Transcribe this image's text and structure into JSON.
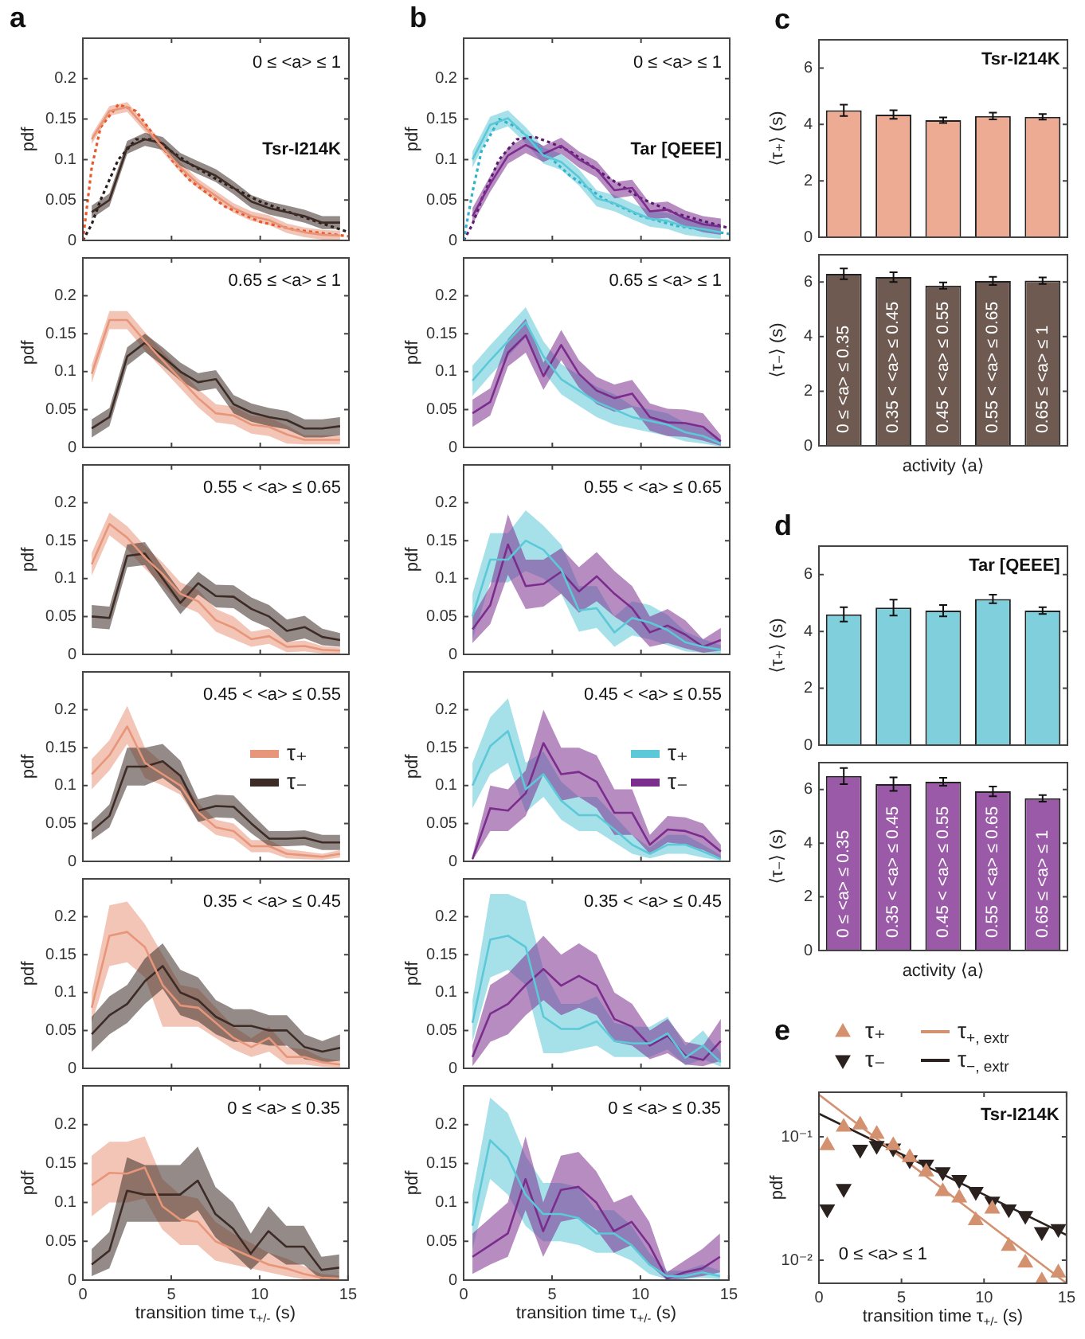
{
  "chart_data": [
    {
      "type": "line",
      "title": "a",
      "ylabel": "pdf",
      "x": [
        0.5,
        1.5,
        2.5,
        3.5,
        4.5,
        5.5,
        6.5,
        7.5,
        8.5,
        9.5,
        10.5,
        11.5,
        12.5,
        13.5,
        14.5
      ],
      "xlim": [
        0,
        15
      ],
      "xticks": [
        0,
        5,
        10,
        15
      ],
      "ylim": [
        0,
        0.25
      ],
      "yticks": [
        0,
        0.05,
        0.1,
        0.15,
        0.2
      ],
      "tick_labels": "y",
      "annotations": [
        "0 ≤ <a> ≤ 1",
        "Tsr-I214K"
      ],
      "series": [
        {
          "color": "#e8967a",
          "values": [
            0.125,
            0.16,
            0.165,
            0.14,
            0.115,
            0.09,
            0.07,
            0.055,
            0.04,
            0.03,
            0.025,
            0.015,
            0.01,
            0.007,
            0.006
          ],
          "lower": [
            0.119,
            0.154,
            0.159,
            0.134,
            0.109,
            0.084,
            0.064,
            0.049,
            0.034,
            0.024,
            0.019,
            0.009,
            0.004,
            0.001,
            0
          ],
          "upper": [
            0.131,
            0.166,
            0.171,
            0.146,
            0.121,
            0.096,
            0.076,
            0.061,
            0.046,
            0.036,
            0.031,
            0.021,
            0.016,
            0.013,
            0.012
          ]
        },
        {
          "color": "#3d2b26",
          "values": [
            0.035,
            0.05,
            0.115,
            0.125,
            0.12,
            0.1,
            0.09,
            0.08,
            0.065,
            0.048,
            0.04,
            0.035,
            0.03,
            0.022,
            0.022
          ],
          "lower": [
            0.027,
            0.042,
            0.107,
            0.117,
            0.112,
            0.092,
            0.082,
            0.072,
            0.057,
            0.04,
            0.032,
            0.027,
            0.022,
            0.014,
            0.014
          ],
          "upper": [
            0.043,
            0.058,
            0.123,
            0.133,
            0.128,
            0.108,
            0.098,
            0.088,
            0.073,
            0.056,
            0.048,
            0.043,
            0.038,
            0.03,
            0.03
          ]
        },
        {
          "type": "line",
          "line_style": "dotted",
          "color": "#e8582a",
          "x": [
            0,
            0.5,
            1,
            2,
            3,
            4,
            5,
            6,
            8,
            10,
            12,
            15
          ],
          "values": [
            0,
            0.09,
            0.14,
            0.168,
            0.16,
            0.13,
            0.1,
            0.075,
            0.042,
            0.023,
            0.013,
            0.005
          ]
        },
        {
          "type": "line",
          "line_style": "dotted",
          "color": "#2a1f1c",
          "x": [
            0,
            0.5,
            1,
            2,
            3,
            4,
            5,
            6,
            8,
            10,
            12,
            15
          ],
          "values": [
            0,
            0.02,
            0.05,
            0.1,
            0.125,
            0.125,
            0.11,
            0.095,
            0.07,
            0.048,
            0.032,
            0.01
          ]
        }
      ]
    },
    {
      "type": "line",
      "ylabel": "pdf",
      "x": [
        0.5,
        1.5,
        2.5,
        3.5,
        4.5,
        5.5,
        6.5,
        7.5,
        8.5,
        9.5,
        10.5,
        11.5,
        12.5,
        13.5,
        14.5
      ],
      "xlim": [
        0,
        15
      ],
      "xticks": [
        0,
        5,
        10,
        15
      ],
      "ylim": [
        0,
        0.25
      ],
      "yticks": [
        0,
        0.05,
        0.1,
        0.15,
        0.2
      ],
      "tick_labels": "y",
      "annotations": [
        "0.65 ≤ <a> ≤ 1"
      ],
      "series": [
        {
          "color": "#e8967a",
          "values": [
            0.097,
            0.168,
            0.168,
            0.14,
            0.115,
            0.09,
            0.065,
            0.045,
            0.042,
            0.03,
            0.027,
            0.017,
            0.01,
            0.01,
            0.01
          ],
          "lower": [
            0.085,
            0.156,
            0.156,
            0.128,
            0.103,
            0.078,
            0.053,
            0.033,
            0.03,
            0.018,
            0.015,
            0.005,
            0.004,
            0.004,
            0.004
          ],
          "upper": [
            0.109,
            0.18,
            0.18,
            0.152,
            0.127,
            0.102,
            0.077,
            0.057,
            0.054,
            0.042,
            0.039,
            0.029,
            0.016,
            0.016,
            0.016
          ]
        },
        {
          "color": "#3d2b26",
          "values": [
            0.025,
            0.04,
            0.12,
            0.138,
            0.12,
            0.1,
            0.086,
            0.09,
            0.057,
            0.046,
            0.04,
            0.036,
            0.025,
            0.025,
            0.028
          ],
          "lower": [
            0.013,
            0.028,
            0.108,
            0.126,
            0.108,
            0.088,
            0.074,
            0.078,
            0.045,
            0.034,
            0.028,
            0.024,
            0.013,
            0.013,
            0.016
          ],
          "upper": [
            0.037,
            0.052,
            0.132,
            0.15,
            0.132,
            0.112,
            0.098,
            0.102,
            0.069,
            0.058,
            0.052,
            0.048,
            0.037,
            0.037,
            0.04
          ]
        }
      ]
    },
    {
      "type": "line",
      "ylabel": "pdf",
      "x": [
        0.5,
        1.5,
        2.5,
        3.5,
        4.5,
        5.5,
        6.5,
        7.5,
        8.5,
        9.5,
        10.5,
        11.5,
        12.5,
        13.5,
        14.5
      ],
      "xlim": [
        0,
        15
      ],
      "xticks": [
        0,
        5,
        10,
        15
      ],
      "ylim": [
        0,
        0.25
      ],
      "yticks": [
        0,
        0.05,
        0.1,
        0.15,
        0.2
      ],
      "tick_labels": "y",
      "annotations": [
        "0.55 < <a> ≤ 0.65"
      ],
      "series": [
        {
          "color": "#e8967a",
          "values": [
            0.119,
            0.172,
            0.154,
            0.128,
            0.106,
            0.08,
            0.07,
            0.045,
            0.035,
            0.02,
            0.024,
            0.01,
            0.011,
            0.006,
            0.005
          ],
          "lower": [
            0.104,
            0.157,
            0.139,
            0.113,
            0.091,
            0.065,
            0.055,
            0.03,
            0.02,
            0.01,
            0.014,
            0.003,
            0.004,
            0.001,
            0.001
          ],
          "upper": [
            0.134,
            0.187,
            0.169,
            0.143,
            0.121,
            0.095,
            0.085,
            0.06,
            0.05,
            0.03,
            0.034,
            0.017,
            0.018,
            0.011,
            0.009
          ]
        },
        {
          "color": "#3d2b26",
          "values": [
            0.05,
            0.048,
            0.13,
            0.133,
            0.1,
            0.068,
            0.094,
            0.077,
            0.076,
            0.06,
            0.05,
            0.031,
            0.036,
            0.023,
            0.019
          ],
          "lower": [
            0.035,
            0.033,
            0.115,
            0.118,
            0.085,
            0.053,
            0.079,
            0.062,
            0.061,
            0.045,
            0.035,
            0.016,
            0.021,
            0.012,
            0.01
          ],
          "upper": [
            0.065,
            0.063,
            0.145,
            0.148,
            0.115,
            0.083,
            0.109,
            0.092,
            0.091,
            0.075,
            0.065,
            0.046,
            0.051,
            0.034,
            0.028
          ]
        }
      ]
    },
    {
      "type": "line",
      "ylabel": "pdf",
      "x": [
        0.5,
        1.5,
        2.5,
        3.5,
        4.5,
        5.5,
        6.5,
        7.5,
        8.5,
        9.5,
        10.5,
        11.5,
        12.5,
        13.5,
        14.5
      ],
      "xlim": [
        0,
        15
      ],
      "xticks": [
        0,
        5,
        10,
        15
      ],
      "ylim": [
        0,
        0.25
      ],
      "yticks": [
        0,
        0.05,
        0.1,
        0.15,
        0.2
      ],
      "tick_labels": "y",
      "legend": "right",
      "annotations": [
        "0.45 < <a> ≤ 0.55"
      ],
      "series": [
        {
          "name": "τ₊",
          "color": "#e8967a",
          "values": [
            0.115,
            0.14,
            0.178,
            0.13,
            0.115,
            0.1,
            0.065,
            0.045,
            0.04,
            0.02,
            0.02,
            0.01,
            0.008,
            0.006,
            0.01
          ],
          "lower": [
            0.095,
            0.12,
            0.155,
            0.11,
            0.1,
            0.088,
            0.053,
            0.035,
            0.03,
            0.012,
            0.012,
            0.004,
            0.003,
            0.002,
            0.005
          ],
          "upper": [
            0.135,
            0.16,
            0.205,
            0.15,
            0.13,
            0.112,
            0.077,
            0.055,
            0.05,
            0.028,
            0.028,
            0.016,
            0.013,
            0.01,
            0.015
          ]
        },
        {
          "name": "τ₋",
          "color": "#3d2b26",
          "values": [
            0.04,
            0.06,
            0.125,
            0.125,
            0.132,
            0.113,
            0.067,
            0.073,
            0.072,
            0.05,
            0.03,
            0.03,
            0.031,
            0.025,
            0.025
          ],
          "lower": [
            0.028,
            0.045,
            0.1,
            0.1,
            0.11,
            0.093,
            0.052,
            0.058,
            0.057,
            0.037,
            0.02,
            0.02,
            0.021,
            0.015,
            0.015
          ],
          "upper": [
            0.052,
            0.075,
            0.15,
            0.15,
            0.155,
            0.133,
            0.082,
            0.088,
            0.087,
            0.063,
            0.04,
            0.04,
            0.041,
            0.035,
            0.035
          ]
        }
      ]
    },
    {
      "type": "line",
      "ylabel": "pdf",
      "x": [
        0.5,
        1.5,
        2.5,
        3.5,
        4.5,
        5.5,
        6.5,
        7.5,
        8.5,
        9.5,
        10.5,
        11.5,
        12.5,
        13.5,
        14.5
      ],
      "xlim": [
        0,
        15
      ],
      "xticks": [
        0,
        5,
        10,
        15
      ],
      "ylim": [
        0,
        0.25
      ],
      "yticks": [
        0,
        0.05,
        0.1,
        0.15,
        0.2
      ],
      "tick_labels": "y",
      "annotations": [
        "0.35 < <a> ≤ 0.45"
      ],
      "series": [
        {
          "color": "#e8967a",
          "values": [
            0.08,
            0.175,
            0.18,
            0.16,
            0.11,
            0.083,
            0.08,
            0.06,
            0.04,
            0.028,
            0.04,
            0.015,
            0.015,
            0.008,
            0.005
          ],
          "lower": [
            0.06,
            0.135,
            0.14,
            0.12,
            0.055,
            0.055,
            0.055,
            0.04,
            0.025,
            0.015,
            0.022,
            0.005,
            0.005,
            0.002,
            0.001
          ],
          "upper": [
            0.1,
            0.215,
            0.22,
            0.19,
            0.15,
            0.11,
            0.105,
            0.08,
            0.055,
            0.04,
            0.055,
            0.028,
            0.025,
            0.014,
            0.01
          ]
        },
        {
          "color": "#3d2b26",
          "values": [
            0.045,
            0.07,
            0.085,
            0.115,
            0.135,
            0.1,
            0.09,
            0.068,
            0.056,
            0.056,
            0.05,
            0.05,
            0.028,
            0.022,
            0.027
          ],
          "lower": [
            0.022,
            0.045,
            0.06,
            0.085,
            0.105,
            0.07,
            0.062,
            0.045,
            0.035,
            0.035,
            0.03,
            0.03,
            0.012,
            0.008,
            0.01
          ],
          "upper": [
            0.068,
            0.095,
            0.11,
            0.145,
            0.165,
            0.13,
            0.12,
            0.09,
            0.078,
            0.078,
            0.07,
            0.07,
            0.045,
            0.036,
            0.045
          ]
        }
      ]
    },
    {
      "type": "line",
      "ylabel": "pdf",
      "xlabel": "transition time τ$_{+/-}$ (s)",
      "x": [
        0.5,
        1.5,
        2.5,
        3.5,
        4.5,
        5.5,
        6.5,
        7.5,
        8.5,
        9.5,
        10.5,
        11.5,
        12.5,
        13.5,
        14.5
      ],
      "xlim": [
        0,
        15
      ],
      "xticks": [
        0,
        5,
        10,
        15
      ],
      "ylim": [
        0,
        0.25
      ],
      "yticks": [
        0,
        0.05,
        0.1,
        0.15,
        0.2
      ],
      "annotations": [
        "0 ≤ <a> ≤ 0.35"
      ],
      "series": [
        {
          "color": "#e8967a",
          "values": [
            0.122,
            0.138,
            0.137,
            0.145,
            0.095,
            0.078,
            0.075,
            0.05,
            0.04,
            0.03,
            0.02,
            0.015,
            0.008,
            0.003,
            0.002
          ],
          "lower": [
            0.082,
            0.1,
            0.1,
            0.105,
            0.065,
            0.045,
            0.045,
            0.025,
            0.02,
            0.015,
            0.01,
            0.005,
            0.001,
            0,
            0
          ],
          "upper": [
            0.16,
            0.178,
            0.178,
            0.185,
            0.13,
            0.11,
            0.105,
            0.075,
            0.06,
            0.048,
            0.035,
            0.028,
            0.018,
            0.008,
            0.006
          ]
        },
        {
          "color": "#3d2b26",
          "values": [
            0.02,
            0.038,
            0.115,
            0.11,
            0.11,
            0.11,
            0.128,
            0.085,
            0.066,
            0.034,
            0.063,
            0.043,
            0.043,
            0.013,
            0.016
          ],
          "lower": [
            0.005,
            0.015,
            0.075,
            0.075,
            0.075,
            0.075,
            0.09,
            0.055,
            0.035,
            0.013,
            0.035,
            0.02,
            0.02,
            0,
            0
          ],
          "upper": [
            0.04,
            0.062,
            0.158,
            0.148,
            0.148,
            0.148,
            0.172,
            0.12,
            0.1,
            0.06,
            0.095,
            0.07,
            0.07,
            0.03,
            0.033
          ]
        }
      ]
    },
    {
      "type": "line",
      "title": "b",
      "ylabel": "pdf",
      "x": [
        0.5,
        1.5,
        2.5,
        3.5,
        4.5,
        5.5,
        6.5,
        7.5,
        8.5,
        9.5,
        10.5,
        11.5,
        12.5,
        13.5,
        14.5
      ],
      "xlim": [
        0,
        15
      ],
      "xticks": [
        0,
        5,
        10,
        15
      ],
      "ylim": [
        0,
        0.25
      ],
      "yticks": [
        0,
        0.05,
        0.1,
        0.15,
        0.2
      ],
      "tick_labels": "y",
      "annotations": [
        "0 ≤ <a> ≤ 1",
        "Tar [QEEE]"
      ],
      "series": [
        {
          "color": "#5cc8d8",
          "values": [
            0.1,
            0.143,
            0.151,
            0.13,
            0.105,
            0.097,
            0.078,
            0.052,
            0.046,
            0.036,
            0.027,
            0.024,
            0.017,
            0.014,
            0.01
          ],
          "lower": [
            0.09,
            0.133,
            0.141,
            0.12,
            0.095,
            0.087,
            0.068,
            0.042,
            0.036,
            0.026,
            0.017,
            0.014,
            0.007,
            0.004,
            0.002
          ],
          "upper": [
            0.11,
            0.153,
            0.161,
            0.14,
            0.115,
            0.107,
            0.088,
            0.062,
            0.056,
            0.046,
            0.037,
            0.034,
            0.027,
            0.024,
            0.018
          ]
        },
        {
          "color": "#7b2d8e",
          "values": [
            0.03,
            0.07,
            0.105,
            0.118,
            0.107,
            0.117,
            0.1,
            0.088,
            0.062,
            0.065,
            0.036,
            0.038,
            0.027,
            0.02,
            0.017
          ],
          "lower": [
            0.02,
            0.06,
            0.095,
            0.108,
            0.097,
            0.107,
            0.09,
            0.078,
            0.052,
            0.055,
            0.026,
            0.028,
            0.017,
            0.01,
            0.007
          ],
          "upper": [
            0.04,
            0.08,
            0.115,
            0.128,
            0.117,
            0.127,
            0.11,
            0.098,
            0.072,
            0.075,
            0.046,
            0.048,
            0.037,
            0.03,
            0.027
          ]
        },
        {
          "type": "line",
          "line_style": "dotted",
          "color": "#2fb4cc",
          "x": [
            0,
            0.5,
            1,
            2,
            3,
            4,
            5,
            6,
            8,
            10,
            12,
            15
          ],
          "values": [
            0,
            0.06,
            0.11,
            0.15,
            0.14,
            0.12,
            0.1,
            0.08,
            0.05,
            0.03,
            0.018,
            0.008
          ]
        },
        {
          "type": "line",
          "line_style": "dotted",
          "color": "#5e1a72",
          "x": [
            0,
            0.5,
            1,
            2,
            3,
            4,
            5,
            6,
            8,
            10,
            12,
            15
          ],
          "values": [
            0,
            0.02,
            0.05,
            0.1,
            0.125,
            0.128,
            0.12,
            0.11,
            0.08,
            0.052,
            0.033,
            0.015
          ]
        }
      ]
    },
    {
      "type": "line",
      "ylabel": "pdf",
      "x": [
        0.5,
        1.5,
        2.5,
        3.5,
        4.5,
        5.5,
        6.5,
        7.5,
        8.5,
        9.5,
        10.5,
        11.5,
        12.5,
        13.5,
        14.5
      ],
      "xlim": [
        0,
        15
      ],
      "xticks": [
        0,
        5,
        10,
        15
      ],
      "ylim": [
        0,
        0.25
      ],
      "yticks": [
        0,
        0.05,
        0.1,
        0.15,
        0.2
      ],
      "tick_labels": "y",
      "annotations": [
        "0.65 ≤ <a> ≤ 1"
      ],
      "series": [
        {
          "color": "#5cc8d8",
          "values": [
            0.088,
            0.115,
            0.14,
            0.165,
            0.12,
            0.09,
            0.075,
            0.06,
            0.05,
            0.04,
            0.035,
            0.03,
            0.02,
            0.015,
            0.005
          ],
          "lower": [
            0.068,
            0.095,
            0.12,
            0.145,
            0.1,
            0.07,
            0.055,
            0.04,
            0.03,
            0.025,
            0.02,
            0.015,
            0.008,
            0.005,
            0.001
          ],
          "upper": [
            0.108,
            0.135,
            0.16,
            0.185,
            0.14,
            0.11,
            0.095,
            0.08,
            0.07,
            0.055,
            0.05,
            0.045,
            0.032,
            0.025,
            0.01
          ]
        },
        {
          "color": "#7b2d8e",
          "values": [
            0.045,
            0.06,
            0.125,
            0.148,
            0.094,
            0.135,
            0.097,
            0.075,
            0.065,
            0.071,
            0.04,
            0.033,
            0.032,
            0.027,
            0.008
          ],
          "lower": [
            0.027,
            0.042,
            0.107,
            0.125,
            0.076,
            0.115,
            0.079,
            0.057,
            0.047,
            0.053,
            0.022,
            0.015,
            0.014,
            0.009,
            0.002
          ],
          "upper": [
            0.063,
            0.078,
            0.143,
            0.17,
            0.112,
            0.155,
            0.115,
            0.093,
            0.083,
            0.089,
            0.058,
            0.051,
            0.05,
            0.045,
            0.016
          ]
        }
      ]
    },
    {
      "type": "line",
      "ylabel": "pdf",
      "x": [
        0.5,
        1.5,
        2.5,
        3.5,
        4.5,
        5.5,
        6.5,
        7.5,
        8.5,
        9.5,
        10.5,
        11.5,
        12.5,
        13.5,
        14.5
      ],
      "xlim": [
        0,
        15
      ],
      "xticks": [
        0,
        5,
        10,
        15
      ],
      "ylim": [
        0,
        0.25
      ],
      "yticks": [
        0,
        0.05,
        0.1,
        0.15,
        0.2
      ],
      "tick_labels": "y",
      "annotations": [
        "0.55 < <a> ≤ 0.65"
      ],
      "series": [
        {
          "color": "#5cc8d8",
          "values": [
            0.05,
            0.125,
            0.125,
            0.15,
            0.138,
            0.112,
            0.058,
            0.061,
            0.029,
            0.048,
            0.042,
            0.032,
            0.016,
            0.01,
            0.006
          ],
          "lower": [
            0.02,
            0.095,
            0.095,
            0.11,
            0.1,
            0.08,
            0.03,
            0.035,
            0.01,
            0.025,
            0.02,
            0.012,
            0.004,
            0.002,
            0.001
          ],
          "upper": [
            0.08,
            0.16,
            0.16,
            0.19,
            0.17,
            0.145,
            0.09,
            0.09,
            0.05,
            0.07,
            0.065,
            0.052,
            0.03,
            0.02,
            0.012
          ]
        },
        {
          "color": "#7b2d8e",
          "values": [
            0.033,
            0.065,
            0.145,
            0.09,
            0.093,
            0.109,
            0.083,
            0.103,
            0.08,
            0.061,
            0.029,
            0.038,
            0.026,
            0.01,
            0.019
          ],
          "lower": [
            0.015,
            0.04,
            0.105,
            0.06,
            0.063,
            0.08,
            0.055,
            0.07,
            0.05,
            0.035,
            0.01,
            0.015,
            0.008,
            0.002,
            0.005
          ],
          "upper": [
            0.05,
            0.09,
            0.185,
            0.125,
            0.125,
            0.14,
            0.115,
            0.135,
            0.11,
            0.09,
            0.05,
            0.06,
            0.045,
            0.02,
            0.035
          ]
        }
      ]
    },
    {
      "type": "line",
      "ylabel": "pdf",
      "x": [
        0.5,
        1.5,
        2.5,
        3.5,
        4.5,
        5.5,
        6.5,
        7.5,
        8.5,
        9.5,
        10.5,
        11.5,
        12.5,
        13.5,
        14.5
      ],
      "xlim": [
        0,
        15
      ],
      "xticks": [
        0,
        5,
        10,
        15
      ],
      "ylim": [
        0,
        0.25
      ],
      "yticks": [
        0,
        0.05,
        0.1,
        0.15,
        0.2
      ],
      "tick_labels": "y",
      "legend": "right",
      "annotations": [
        "0.45 < <a> ≤ 0.55"
      ],
      "series": [
        {
          "name": "τ₊",
          "color": "#5cc8d8",
          "values": [
            0.1,
            0.152,
            0.172,
            0.095,
            0.115,
            0.08,
            0.061,
            0.061,
            0.042,
            0.022,
            0.01,
            0.022,
            0.022,
            0.013,
            0.003
          ],
          "lower": [
            0.07,
            0.115,
            0.13,
            0.065,
            0.085,
            0.055,
            0.04,
            0.04,
            0.025,
            0.01,
            0.004,
            0.01,
            0.01,
            0.005,
            0.001
          ],
          "upper": [
            0.13,
            0.19,
            0.215,
            0.13,
            0.145,
            0.105,
            0.085,
            0.085,
            0.06,
            0.035,
            0.018,
            0.035,
            0.035,
            0.022,
            0.008
          ]
        },
        {
          "name": "τ₋",
          "color": "#7b2d8e",
          "values": [
            0.003,
            0.07,
            0.067,
            0.09,
            0.156,
            0.115,
            0.118,
            0.105,
            0.064,
            0.064,
            0.022,
            0.042,
            0.04,
            0.032,
            0.013
          ],
          "lower": [
            0.001,
            0.04,
            0.04,
            0.06,
            0.115,
            0.08,
            0.085,
            0.07,
            0.035,
            0.035,
            0.01,
            0.025,
            0.022,
            0.015,
            0.004
          ],
          "upper": [
            0.008,
            0.1,
            0.095,
            0.12,
            0.2,
            0.15,
            0.15,
            0.14,
            0.095,
            0.095,
            0.035,
            0.06,
            0.058,
            0.05,
            0.022
          ]
        }
      ]
    },
    {
      "type": "line",
      "ylabel": "pdf",
      "x": [
        0.5,
        1.5,
        2.5,
        3.5,
        4.5,
        5.5,
        6.5,
        7.5,
        8.5,
        9.5,
        10.5,
        11.5,
        12.5,
        13.5,
        14.5
      ],
      "xlim": [
        0,
        15
      ],
      "xticks": [
        0,
        5,
        10,
        15
      ],
      "ylim": [
        0,
        0.25
      ],
      "yticks": [
        0,
        0.05,
        0.1,
        0.15,
        0.2
      ],
      "tick_labels": "y",
      "annotations": [
        "0.35 < <a> ≤ 0.45"
      ],
      "series": [
        {
          "color": "#5cc8d8",
          "values": [
            0.06,
            0.17,
            0.175,
            0.16,
            0.068,
            0.052,
            0.052,
            0.062,
            0.036,
            0.033,
            0.033,
            0.046,
            0.014,
            0.03,
            0.008
          ],
          "lower": [
            0.035,
            0.12,
            0.13,
            0.11,
            0.02,
            0.02,
            0.025,
            0.03,
            0.015,
            0.015,
            0.015,
            0.025,
            0.004,
            0.012,
            0.002
          ],
          "upper": [
            0.09,
            0.23,
            0.23,
            0.22,
            0.13,
            0.085,
            0.085,
            0.095,
            0.06,
            0.055,
            0.055,
            0.068,
            0.03,
            0.05,
            0.02
          ]
        },
        {
          "color": "#7b2d8e",
          "values": [
            0.015,
            0.072,
            0.085,
            0.11,
            0.131,
            0.109,
            0.122,
            0.109,
            0.065,
            0.055,
            0.03,
            0.043,
            0.017,
            0.011,
            0.036
          ],
          "lower": [
            0.003,
            0.035,
            0.045,
            0.07,
            0.09,
            0.07,
            0.08,
            0.07,
            0.035,
            0.03,
            0.012,
            0.02,
            0.005,
            0.003,
            0.01
          ],
          "upper": [
            0.03,
            0.11,
            0.125,
            0.15,
            0.175,
            0.15,
            0.165,
            0.15,
            0.1,
            0.085,
            0.05,
            0.065,
            0.035,
            0.03,
            0.065
          ]
        }
      ]
    },
    {
      "type": "line",
      "ylabel": "pdf",
      "xlabel": "transition time τ$_{+/-}$ (s)",
      "x": [
        0.5,
        1.5,
        2.5,
        3.5,
        4.5,
        5.5,
        6.5,
        7.5,
        8.5,
        9.5,
        10.5,
        11.5,
        12.5,
        13.5,
        14.5
      ],
      "xlim": [
        0,
        15
      ],
      "xticks": [
        0,
        5,
        10,
        15
      ],
      "ylim": [
        0,
        0.25
      ],
      "yticks": [
        0,
        0.05,
        0.1,
        0.15,
        0.2
      ],
      "annotations": [
        "0 ≤ <a> ≤ 0.35"
      ],
      "series": [
        {
          "color": "#5cc8d8",
          "values": [
            0.07,
            0.18,
            0.158,
            0.11,
            0.085,
            0.085,
            0.08,
            0.06,
            0.06,
            0.045,
            0.02,
            0.005,
            0.005,
            0.01,
            0.005
          ],
          "lower": [
            0.04,
            0.13,
            0.11,
            0.07,
            0.05,
            0.05,
            0.045,
            0.035,
            0.035,
            0.025,
            0.008,
            0.001,
            0.001,
            0.003,
            0.001
          ],
          "upper": [
            0.11,
            0.235,
            0.215,
            0.16,
            0.125,
            0.125,
            0.12,
            0.09,
            0.09,
            0.07,
            0.035,
            0.012,
            0.012,
            0.02,
            0.012
          ]
        },
        {
          "color": "#7b2d8e",
          "values": [
            0.03,
            0.045,
            0.06,
            0.13,
            0.063,
            0.116,
            0.12,
            0.1,
            0.063,
            0.075,
            0.045,
            0.002,
            0.01,
            0.015,
            0.03
          ],
          "lower": [
            0.008,
            0.02,
            0.03,
            0.09,
            0.03,
            0.075,
            0.08,
            0.065,
            0.035,
            0.045,
            0.02,
            0,
            0.002,
            0.005,
            0.01
          ],
          "upper": [
            0.06,
            0.08,
            0.1,
            0.185,
            0.1,
            0.16,
            0.165,
            0.14,
            0.1,
            0.11,
            0.075,
            0.01,
            0.025,
            0.04,
            0.06
          ]
        }
      ]
    },
    {
      "type": "bar",
      "title": "c",
      "ylabel": "⟨τ₊⟩ (s)",
      "categories": [
        null,
        null,
        null,
        null,
        null
      ],
      "values": [
        4.5,
        4.35,
        4.15,
        4.3,
        4.27
      ],
      "errors": [
        0.2,
        0.15,
        0.1,
        0.12,
        0.1
      ],
      "color": "#eeab93",
      "ylim": [
        0,
        7
      ],
      "yticks": [
        0,
        2,
        4,
        6
      ],
      "tick_labels": "y",
      "annotations": [
        "Tsr-I214K"
      ]
    },
    {
      "type": "bar",
      "ylabel": "⟨τ₋⟩ (s)",
      "xlabel": "activity ⟨a⟩",
      "categories": [
        "0 ≤ <a> ≤ 0.35",
        "0.35 < <a> ≤ 0.45",
        "0.45 < <a> ≤ 0.55",
        "0.55 < <a> ≤ 0.65",
        "0.65 ≤ <a> ≤ 1"
      ],
      "values": [
        6.3,
        6.18,
        5.87,
        6.04,
        6.05
      ],
      "errors": [
        0.2,
        0.18,
        0.12,
        0.15,
        0.12
      ],
      "color": "#6f5a52",
      "ylim": [
        0,
        7
      ],
      "yticks": [
        0,
        2,
        4,
        6
      ]
    },
    {
      "type": "bar",
      "title": "d",
      "ylabel": "⟨τ₊⟩ (s)",
      "categories": [
        null,
        null,
        null,
        null,
        null
      ],
      "values": [
        4.6,
        4.84,
        4.73,
        5.14,
        4.73
      ],
      "errors": [
        0.25,
        0.28,
        0.2,
        0.15,
        0.12
      ],
      "color": "#7fd0dc",
      "ylim": [
        0,
        7
      ],
      "yticks": [
        0,
        2,
        4,
        6
      ],
      "tick_labels": "y",
      "annotations": [
        "Tar [QEEE]"
      ]
    },
    {
      "type": "bar",
      "ylabel": "⟨τ₋⟩ (s)",
      "xlabel": "activity ⟨a⟩",
      "categories": [
        "0 ≤ <a> ≤ 0.35",
        "0.35 < <a> ≤ 0.45",
        "0.45 < <a> ≤ 0.55",
        "0.55 < <a> ≤ 0.65",
        "0.65 ≤ <a> ≤ 1"
      ],
      "values": [
        6.5,
        6.2,
        6.29,
        5.93,
        5.67
      ],
      "errors": [
        0.3,
        0.25,
        0.15,
        0.18,
        0.12
      ],
      "color": "#9a5aa8",
      "ylim": [
        0,
        7
      ],
      "yticks": [
        0,
        2,
        4,
        6
      ]
    },
    {
      "type": "scatter",
      "title": "e",
      "ylabel": "pdf",
      "xlabel": "transition time τ$_{+/-}$ (s)",
      "log": true,
      "legend": "top",
      "x": [
        0.5,
        1.5,
        2.5,
        3.5,
        4.5,
        5.5,
        6.5,
        7.5,
        8.5,
        9.5,
        10.5,
        11.5,
        12.5,
        13.5,
        14.5
      ],
      "xlim": [
        0,
        15
      ],
      "xticks": [
        0,
        5,
        10,
        15
      ],
      "ylim": [
        0.0065,
        0.23
      ],
      "yticks": [
        {
          "value": 0.1,
          "label": "10⁻¹"
        },
        {
          "value": 0.01,
          "label": "10⁻²"
        }
      ],
      "annotations": [
        "Tsr-I214K",
        "0 ≤ <a> ≤ 1"
      ],
      "series": [
        {
          "name": "τ₊",
          "marker": "triangle",
          "color": "#d4916f",
          "values": [
            0.085,
            0.12,
            0.125,
            0.105,
            0.085,
            0.068,
            0.052,
            0.036,
            0.032,
            0.021,
            0.026,
            0.013,
            0.0095,
            0.0068,
            0.0079
          ]
        },
        {
          "name": "τ₋",
          "marker": "triangle",
          "color": "#2b211e",
          "values": [
            0.026,
            0.038,
            0.079,
            0.085,
            0.081,
            0.065,
            0.06,
            0.052,
            0.045,
            0.036,
            0.03,
            0.026,
            0.023,
            0.017,
            0.018
          ]
        },
        {
          "name": "τ$_{+, extr}$",
          "type": "line",
          "color": "#d4916f",
          "x": [
            0,
            15
          ],
          "values": [
            0.22,
            0.0065
          ]
        },
        {
          "name": "τ$_{−, extr}$",
          "type": "line",
          "color": "#2b211e",
          "x": [
            0,
            15
          ],
          "values": [
            0.154,
            0.016
          ]
        }
      ]
    }
  ]
}
